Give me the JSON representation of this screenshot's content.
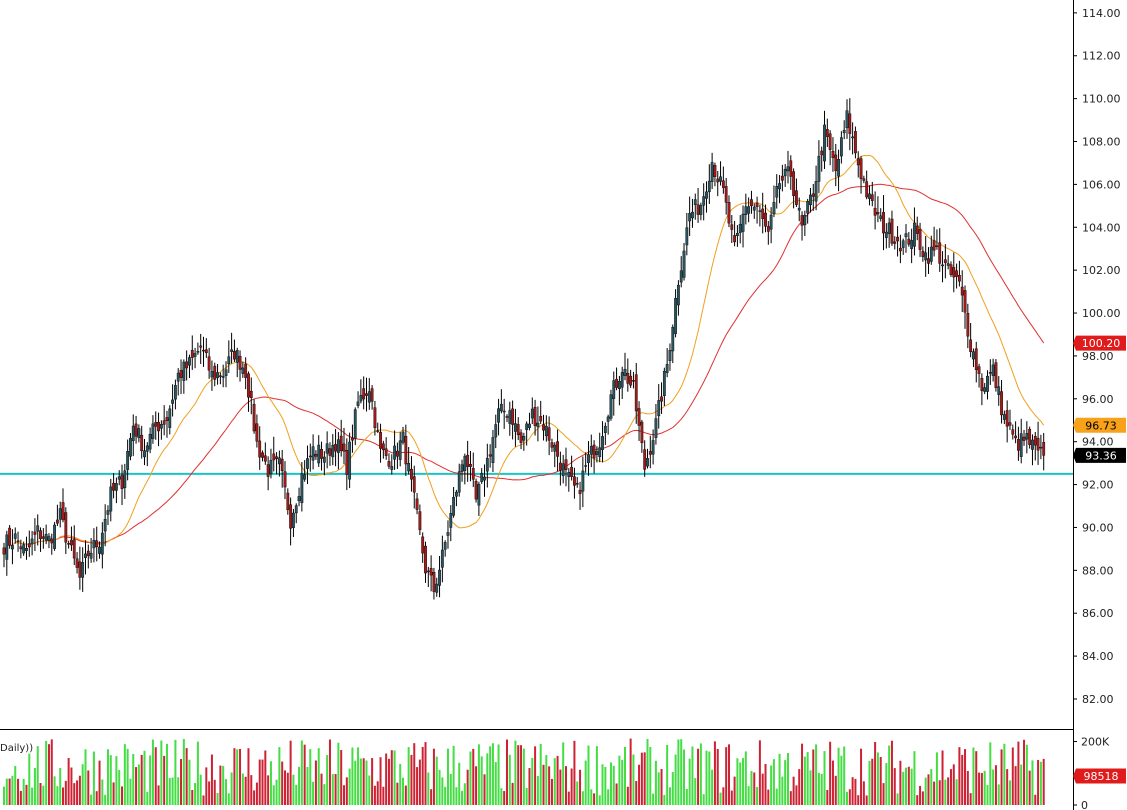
{
  "chart_data": {
    "type": "candlestick",
    "price_axis": {
      "range": [
        80.6,
        114.6
      ],
      "ticks": [
        "114.00",
        "112.00",
        "110.00",
        "108.00",
        "106.00",
        "104.00",
        "102.00",
        "100.00",
        "98.00",
        "96.00",
        "94.00",
        "92.00",
        "90.00",
        "88.00",
        "86.00",
        "84.00",
        "82.00"
      ]
    },
    "volume_axis": {
      "range": [
        0,
        230000
      ],
      "ticks": [
        {
          "value": 200000,
          "label": "200K"
        },
        {
          "value": 0,
          "label": "0"
        }
      ]
    },
    "volume_panel_label": "Daily))",
    "support_line": {
      "value": 92.5,
      "color": "#18c6c6"
    },
    "last_price": {
      "value": 93.36,
      "label": "93.36",
      "bg": "#000000",
      "fg": "#ffffff"
    },
    "ma_fast": {
      "label": "96.73",
      "color": "#f0a020",
      "tag_bg": "#f7a21a"
    },
    "ma_slow": {
      "label": "100.20",
      "color": "#e03030",
      "tag_bg": "#e01b1b"
    },
    "last_volume": {
      "label": "98518",
      "bg": "#e01b1b"
    },
    "colors": {
      "up_candle": "#2a5560",
      "down_candle": "#a31a1a",
      "up_volume": "#44dd44",
      "down_volume": "#cc2233"
    },
    "anchors": [
      [
        0,
        89.2
      ],
      [
        4,
        89.5
      ],
      [
        8,
        88.8
      ],
      [
        12,
        89.8
      ],
      [
        16,
        89.4
      ],
      [
        20,
        90.5
      ],
      [
        24,
        88.8
      ],
      [
        27,
        87.6
      ],
      [
        30,
        88.8
      ],
      [
        34,
        89.4
      ],
      [
        38,
        91.5
      ],
      [
        42,
        92.2
      ],
      [
        46,
        94.8
      ],
      [
        50,
        93.7
      ],
      [
        54,
        94.7
      ],
      [
        58,
        95.1
      ],
      [
        62,
        97.1
      ],
      [
        66,
        97.6
      ],
      [
        70,
        98.4
      ],
      [
        74,
        97.1
      ],
      [
        78,
        97.2
      ],
      [
        82,
        98.2
      ],
      [
        86,
        97.3
      ],
      [
        90,
        93.9
      ],
      [
        94,
        92.7
      ],
      [
        98,
        92.9
      ],
      [
        102,
        90.4
      ],
      [
        106,
        92.4
      ],
      [
        110,
        93.6
      ],
      [
        114,
        93.4
      ],
      [
        118,
        94.0
      ],
      [
        122,
        92.9
      ],
      [
        126,
        95.8
      ],
      [
        130,
        96.6
      ],
      [
        134,
        93.5
      ],
      [
        138,
        93.2
      ],
      [
        142,
        94.1
      ],
      [
        146,
        91.2
      ],
      [
        150,
        88.1
      ],
      [
        153,
        87.1
      ],
      [
        156,
        88.6
      ],
      [
        160,
        91.2
      ],
      [
        164,
        93.6
      ],
      [
        168,
        91.2
      ],
      [
        172,
        93.1
      ],
      [
        176,
        95.3
      ],
      [
        180,
        95.5
      ],
      [
        184,
        93.9
      ],
      [
        188,
        95.3
      ],
      [
        192,
        94.8
      ],
      [
        196,
        93.7
      ],
      [
        200,
        92.4
      ],
      [
        204,
        91.6
      ],
      [
        208,
        93.2
      ],
      [
        212,
        94.1
      ],
      [
        216,
        96.1
      ],
      [
        220,
        97.5
      ],
      [
        224,
        96.4
      ],
      [
        228,
        92.8
      ],
      [
        232,
        94.8
      ],
      [
        236,
        97.6
      ],
      [
        240,
        101.6
      ],
      [
        244,
        104.6
      ],
      [
        248,
        105.1
      ],
      [
        252,
        107.1
      ],
      [
        256,
        105.6
      ],
      [
        260,
        102.9
      ],
      [
        264,
        105.1
      ],
      [
        268,
        104.9
      ],
      [
        272,
        103.6
      ],
      [
        276,
        106.1
      ],
      [
        280,
        106.5
      ],
      [
        284,
        103.9
      ],
      [
        288,
        105.7
      ],
      [
        292,
        108.4
      ],
      [
        296,
        106.6
      ],
      [
        300,
        109.1
      ],
      [
        304,
        107.0
      ],
      [
        308,
        105.2
      ],
      [
        312,
        104.2
      ],
      [
        316,
        103.7
      ],
      [
        320,
        103.2
      ],
      [
        324,
        103.8
      ],
      [
        328,
        102.7
      ],
      [
        332,
        102.9
      ],
      [
        336,
        101.9
      ],
      [
        340,
        101.3
      ],
      [
        344,
        98.6
      ],
      [
        348,
        96.6
      ],
      [
        352,
        97.3
      ],
      [
        356,
        95.1
      ],
      [
        360,
        93.9
      ],
      [
        364,
        94.1
      ],
      [
        368,
        93.4
      ],
      [
        370,
        93.36
      ]
    ]
  }
}
